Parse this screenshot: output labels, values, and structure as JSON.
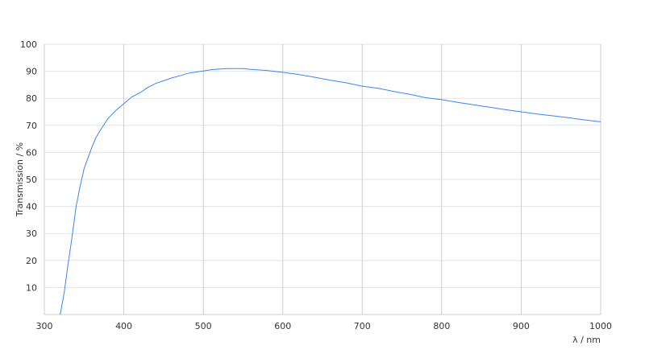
{
  "chart_data": {
    "type": "line",
    "title": "",
    "xlabel": "λ / nm",
    "ylabel": "Transmission / %",
    "xlim": [
      300,
      1000
    ],
    "ylim": [
      0,
      100
    ],
    "xticks": [
      300,
      400,
      500,
      600,
      700,
      800,
      900,
      1000
    ],
    "yticks": [
      10,
      20,
      30,
      40,
      50,
      60,
      70,
      80,
      90,
      100
    ],
    "grid": true,
    "line_color": "#3d85f0",
    "series": [
      {
        "x": [
          320,
          325,
          330,
          335,
          340,
          345,
          350,
          355,
          360,
          365,
          370,
          380,
          390,
          400,
          410,
          420,
          430,
          440,
          450,
          460,
          470,
          480,
          490,
          500,
          510,
          520,
          530,
          540,
          550,
          560,
          580,
          600,
          620,
          640,
          660,
          680,
          700,
          720,
          740,
          760,
          780,
          800,
          820,
          840,
          860,
          880,
          900,
          920,
          940,
          960,
          980,
          1000
        ],
        "y": [
          0,
          8,
          19,
          29,
          40,
          47.5,
          54,
          58,
          62,
          65.5,
          68,
          72.5,
          75.5,
          78,
          80.5,
          82,
          84,
          85.5,
          86.5,
          87.5,
          88.3,
          89.2,
          89.7,
          90.1,
          90.6,
          90.8,
          91,
          91,
          91,
          90.7,
          90.3,
          89.6,
          88.8,
          87.8,
          86.7,
          85.7,
          84.5,
          83.7,
          82.5,
          81.5,
          80.2,
          79.5,
          78.5,
          77.6,
          76.7,
          75.8,
          75,
          74.2,
          73.5,
          72.8,
          72,
          71.3
        ]
      }
    ]
  }
}
